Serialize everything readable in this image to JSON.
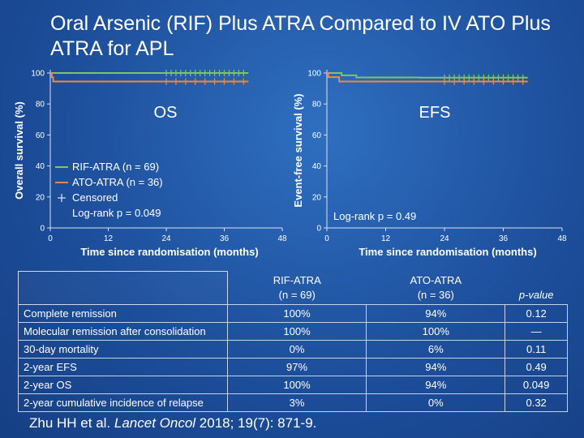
{
  "title": "Oral Arsenic (RIF) Plus ATRA Compared to IV ATO Plus ATRA for APL",
  "colors": {
    "rif": "#7dc46b",
    "ato": "#f08a3a",
    "axis": "#d8e2f2",
    "background": "#1d4f9c"
  },
  "chart_data": [
    {
      "type": "line",
      "panel_label": "OS",
      "xlabel": "Time since randomisation (months)",
      "ylabel": "Overall survival (%)",
      "xlim": [
        0,
        48
      ],
      "ylim": [
        0,
        100
      ],
      "xticks": [
        "0",
        "12",
        "24",
        "36",
        "48"
      ],
      "yticks": [
        "0",
        "20",
        "40",
        "60",
        "80",
        "100"
      ],
      "legend": {
        "placement": "bottom-left",
        "entries": [
          "RIF-ATRA (n = 69)",
          "ATO-ATRA (n = 36)",
          "Censored"
        ],
        "note": "Log-rank p = 0.049"
      },
      "series": [
        {
          "name": "RIF-ATRA (n = 69)",
          "color": "#7dc46b",
          "x": [
            0,
            41
          ],
          "y": [
            100,
            100
          ],
          "censored_x": [
            24,
            25,
            26,
            27,
            28,
            29,
            30,
            31,
            32,
            33,
            34,
            35,
            36,
            37,
            38,
            39,
            40
          ]
        },
        {
          "name": "ATO-ATRA (n = 36)",
          "color": "#f08a3a",
          "x": [
            0,
            0.3,
            0.3,
            0.6,
            0.6,
            41
          ],
          "y": [
            100,
            100,
            97.3,
            97.3,
            94.5,
            94.5
          ],
          "censored_x": [
            24,
            26,
            28,
            30,
            32,
            34,
            36,
            38,
            40
          ]
        }
      ]
    },
    {
      "type": "line",
      "panel_label": "EFS",
      "xlabel": "Time since randomisation (months)",
      "ylabel": "Event-free survival (%)",
      "xlim": [
        0,
        48
      ],
      "ylim": [
        0,
        100
      ],
      "xticks": [
        "0",
        "12",
        "24",
        "36",
        "48"
      ],
      "yticks": [
        "0",
        "20",
        "40",
        "60",
        "80",
        "100"
      ],
      "legend": {
        "placement": "bottom-left",
        "entries": [],
        "note": "Log-rank p = 0.49"
      },
      "series": [
        {
          "name": "RIF-ATRA",
          "color": "#7dc46b",
          "x": [
            0,
            3,
            3,
            6,
            6,
            19,
            19,
            41
          ],
          "y": [
            100,
            100,
            98.5,
            98.5,
            97.1,
            97.1,
            97,
            97
          ],
          "censored_x": [
            24,
            25,
            26,
            27,
            28,
            29,
            30,
            31,
            32,
            33,
            34,
            35,
            36,
            37,
            38,
            39,
            40
          ]
        },
        {
          "name": "ATO-ATRA",
          "color": "#f08a3a",
          "x": [
            0,
            0.3,
            0.3,
            2.5,
            2.5,
            41
          ],
          "y": [
            100,
            100,
            97.3,
            97.3,
            94.5,
            94.5
          ],
          "censored_x": [
            24,
            26,
            28,
            30,
            32,
            34,
            36,
            38,
            40
          ]
        }
      ]
    }
  ],
  "table": {
    "columns": [
      {
        "name": "RIF-ATRA",
        "n": "(n = 69)"
      },
      {
        "name": "ATO-ATRA",
        "n": "(n = 36)"
      },
      {
        "name": "p-value",
        "n": ""
      }
    ],
    "rows": [
      {
        "label": "Complete remission",
        "rif": "100%",
        "ato": "94%",
        "p": "0.12"
      },
      {
        "label": "Molecular remission after consolidation",
        "rif": "100%",
        "ato": "100%",
        "p": "—"
      },
      {
        "label": "30-day mortality",
        "rif": "0%",
        "ato": "6%",
        "p": "0.11"
      },
      {
        "label": "2-year EFS",
        "rif": "97%",
        "ato": "94%",
        "p": "0.49"
      },
      {
        "label": "2-year OS",
        "rif": "100%",
        "ato": "94%",
        "p": "0.049"
      },
      {
        "label": "2-year cumulative incidence of relapse",
        "rif": "3%",
        "ato": "0%",
        "p": "0.32"
      }
    ]
  },
  "citation": {
    "authors": "Zhu HH et al. ",
    "journal": "Lancet Oncol",
    "details": " 2018; 19(7): 871-9."
  }
}
